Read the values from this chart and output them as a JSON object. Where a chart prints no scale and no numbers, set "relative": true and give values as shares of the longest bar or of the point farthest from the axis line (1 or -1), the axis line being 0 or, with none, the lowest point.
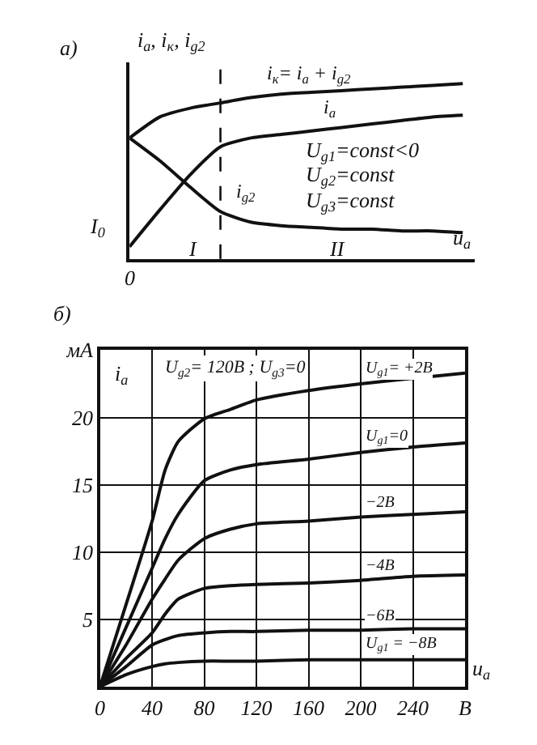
{
  "chart_data": [
    {
      "type": "line",
      "title": "а)",
      "ylabel": "i$_{a}$, i$_{к}$, i$_{g2}$",
      "xlabel": "u$_{a}$",
      "relative": true,
      "grid": false,
      "categories": [
        null,
        null,
        null,
        null,
        null,
        null,
        null,
        null,
        null,
        null,
        null,
        null
      ],
      "series": [
        {
          "name": "i$_{к}$= i$_{a}$ + i$_{g2}$",
          "color": "#111111",
          "values": [
            0.69,
            0.81,
            0.86,
            0.89,
            0.92,
            0.94,
            0.95,
            0.96,
            0.97,
            0.98,
            0.99,
            1.0
          ]
        },
        {
          "name": "i$_{a}$",
          "color": "#111111",
          "values": [
            0.07,
            0.28,
            0.48,
            0.64,
            0.69,
            0.71,
            0.73,
            0.75,
            0.77,
            0.79,
            0.81,
            0.82
          ]
        },
        {
          "name": "i$_{g2}$",
          "color": "#111111",
          "values": [
            0.69,
            0.56,
            0.41,
            0.27,
            0.21,
            0.19,
            0.18,
            0.17,
            0.17,
            0.16,
            0.16,
            0.15
          ]
        }
      ],
      "annotations": [
        "U$_{g1}$=const<0",
        "U$_{g2}$=const",
        "U$_{g3}$=const",
        "I",
        "II",
        "I$_{0}$",
        "0"
      ]
    },
    {
      "type": "line",
      "title": "б)",
      "ylabel": "i$_{a}$",
      "xlabel": "u$_{a}$",
      "grid": true,
      "x": [
        0,
        20,
        40,
        50,
        60,
        80,
        100,
        120,
        160,
        200,
        240,
        280
      ],
      "xlim": [
        0,
        280
      ],
      "xticks": [
        0,
        40,
        80,
        120,
        160,
        200,
        240,
        {
          "value": 280,
          "label": "В"
        }
      ],
      "ylim": [
        0,
        25
      ],
      "yticks": [
        5,
        10,
        15,
        20,
        {
          "value": 25,
          "label": "мА"
        }
      ],
      "series": [
        {
          "name": "U$_{g1}$= +2В",
          "color": "#111111",
          "values": [
            0,
            6.1,
            12.3,
            16.1,
            18.2,
            19.9,
            20.6,
            21.3,
            22.0,
            22.5,
            22.9,
            23.3
          ]
        },
        {
          "name": "U$_{g1}$=0",
          "color": "#111111",
          "values": [
            0,
            4.4,
            8.8,
            11.0,
            12.8,
            15.3,
            16.1,
            16.5,
            16.9,
            17.4,
            17.8,
            18.1
          ]
        },
        {
          "name": "−2В",
          "color": "#111111",
          "values": [
            0,
            3.1,
            6.5,
            8.0,
            9.4,
            11.0,
            11.7,
            12.1,
            12.3,
            12.6,
            12.8,
            13.0
          ]
        },
        {
          "name": "−4В",
          "color": "#111111",
          "values": [
            0,
            2.1,
            4.0,
            5.4,
            6.5,
            7.3,
            7.5,
            7.6,
            7.7,
            7.9,
            8.2,
            8.3
          ]
        },
        {
          "name": "−6В",
          "color": "#111111",
          "values": [
            0,
            1.5,
            3.1,
            3.5,
            3.8,
            4.0,
            4.1,
            4.1,
            4.2,
            4.2,
            4.3,
            4.3
          ]
        },
        {
          "name": "U$_{g1}$ = −8В",
          "color": "#111111",
          "values": [
            0,
            0.9,
            1.5,
            1.7,
            1.8,
            1.9,
            1.9,
            1.9,
            2.0,
            2.0,
            2.0,
            2.0
          ]
        }
      ],
      "annotations": [
        "U$_{g2}$= 120В ; U$_{g3}$=0"
      ]
    }
  ]
}
